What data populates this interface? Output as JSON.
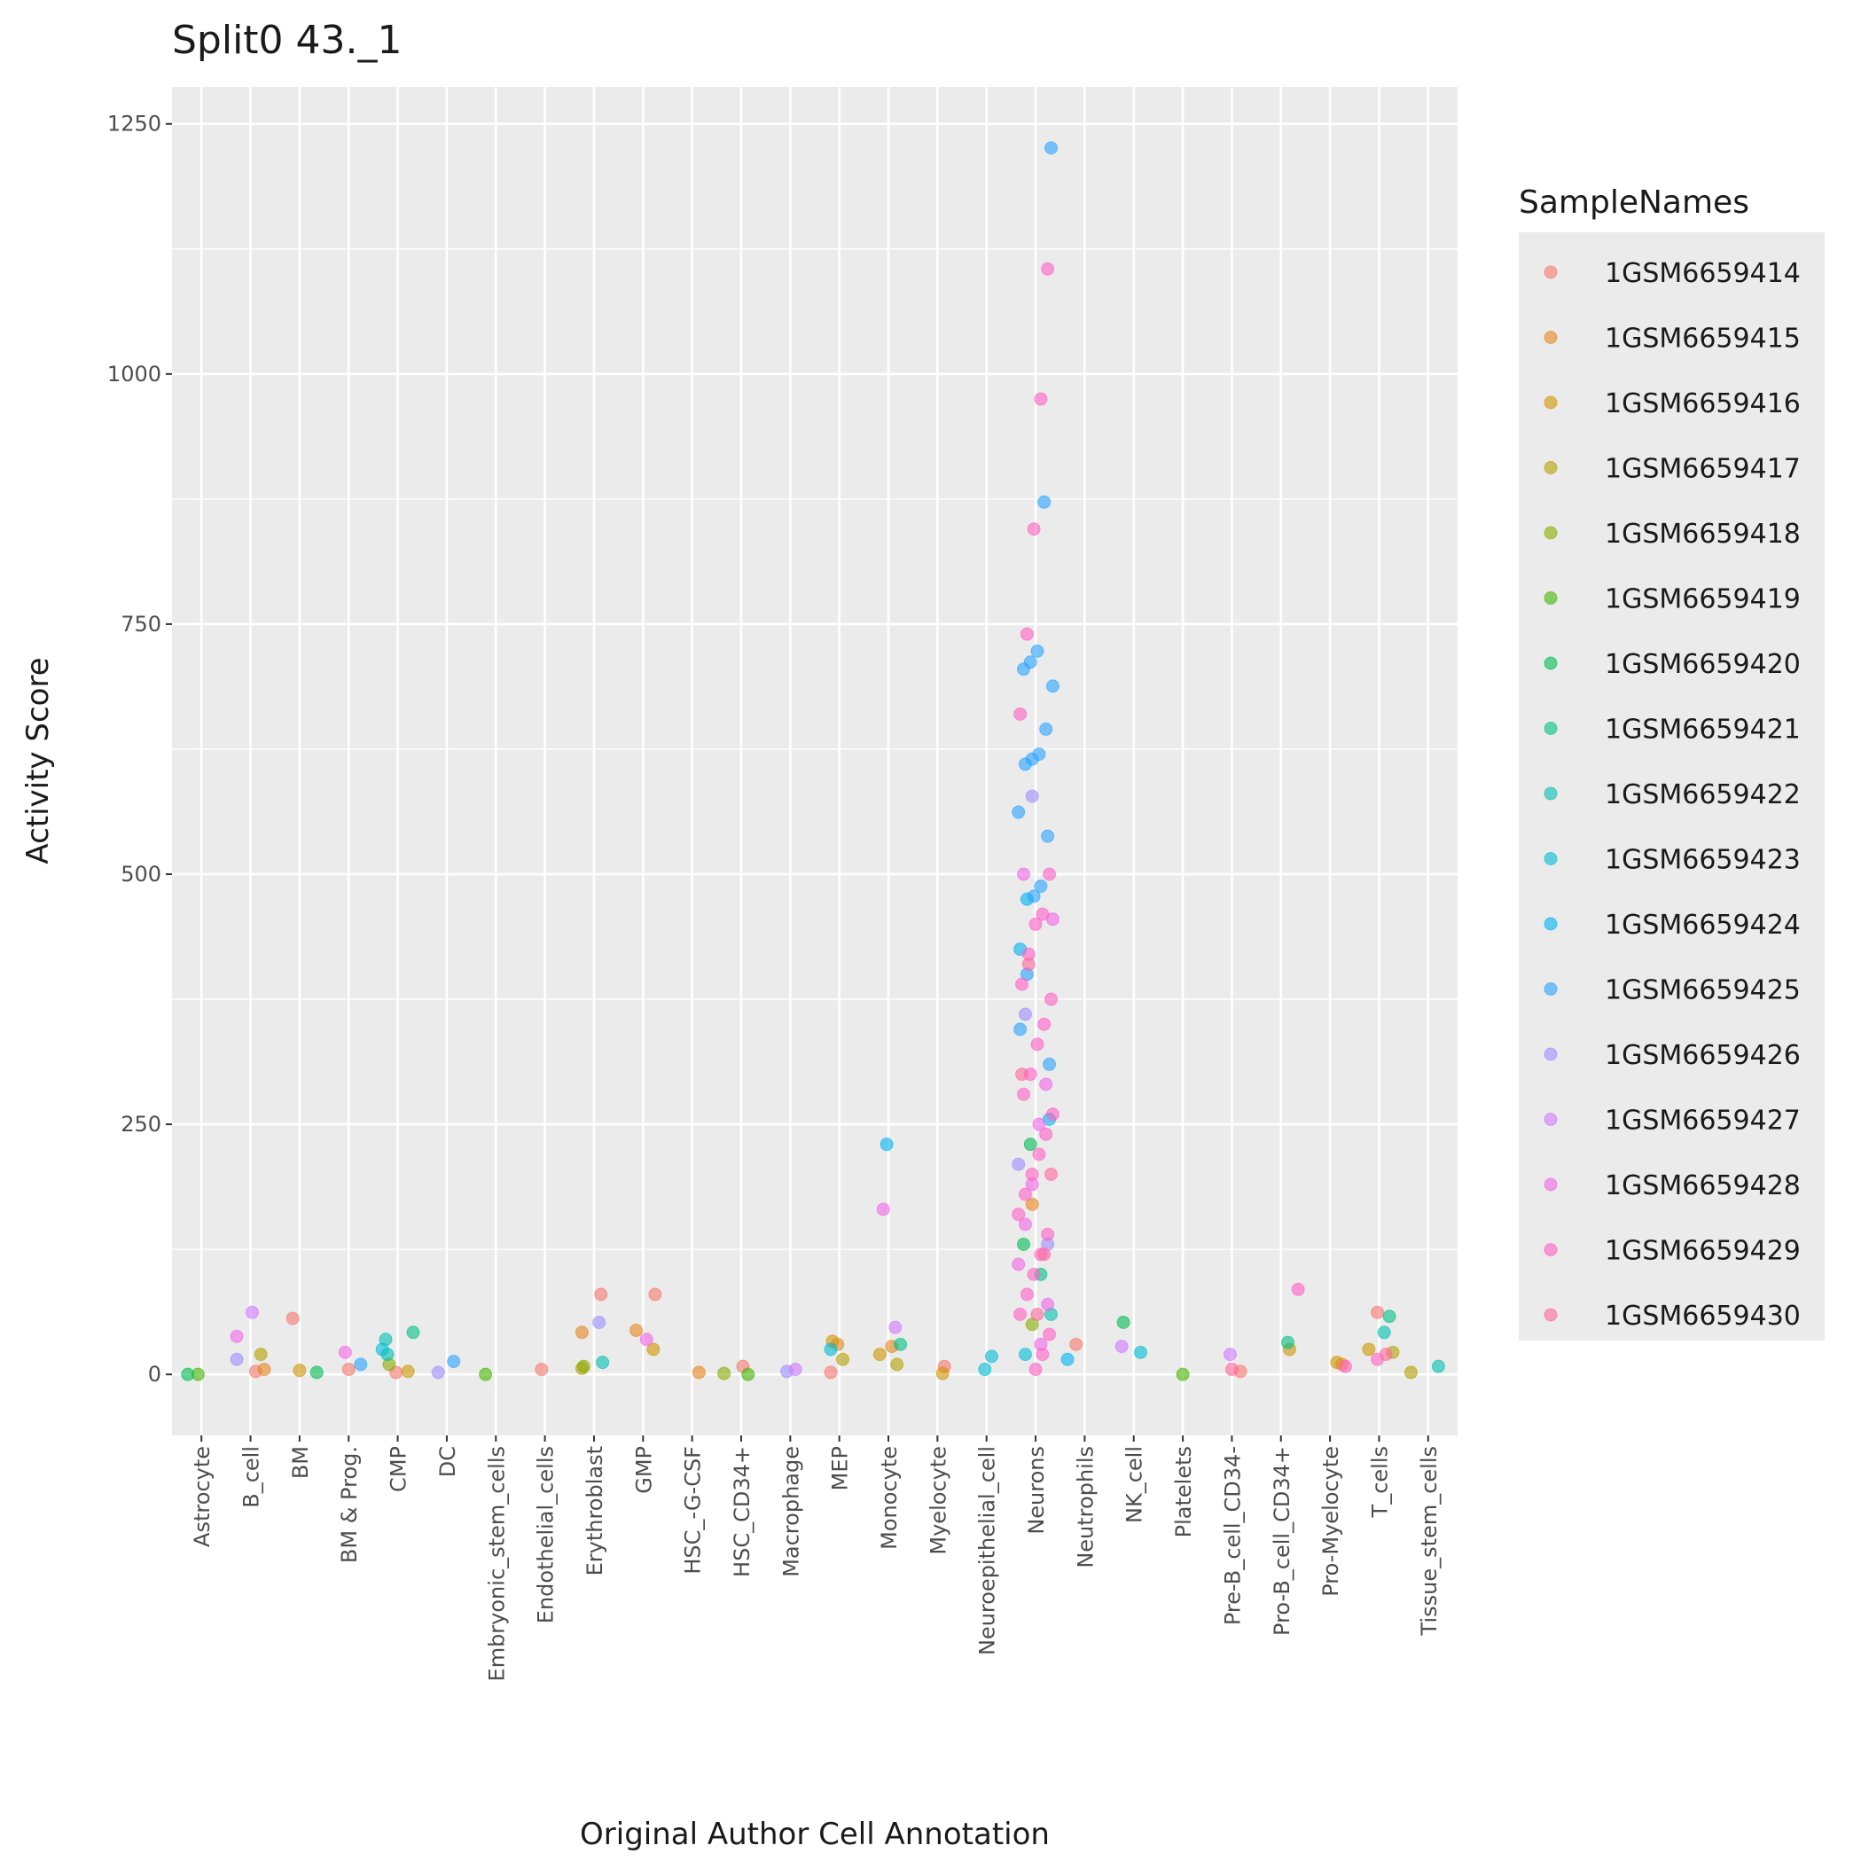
{
  "chart_data": {
    "type": "strip",
    "title": "Split0 43._1",
    "x_label": "Original Author Cell Annotation",
    "y_label": "Activity Score",
    "legend_title": "SampleNames",
    "legend_position": "right",
    "grid": true,
    "ylim": [
      -61,
      1287
    ],
    "yticks": [
      0,
      250,
      500,
      750,
      1000,
      1250
    ],
    "categories": [
      "Astrocyte",
      "B_cell",
      "BM",
      "BM & Prog.",
      "CMP",
      "DC",
      "Embryonic_stem_cells",
      "Endothelial_cells",
      "Erythroblast",
      "GMP",
      "HSC_-G-CSF",
      "HSC_CD34+",
      "Macrophage",
      "MEP",
      "Monocyte",
      "Myelocyte",
      "Neuroepithelial_cell",
      "Neurons",
      "Neutrophils",
      "NK_cell",
      "Platelets",
      "Pre-B_cell_CD34-",
      "Pro-B_cell_CD34+",
      "Pro-Myelocyte",
      "T_cells",
      "Tissue_stem_cells"
    ],
    "series": [
      {
        "name": "1GSM6659414",
        "color": "#F8766D",
        "x": [
          "Erythroblast",
          "GMP",
          "BM",
          "T_cells",
          "Neutrophils",
          "Endothelial_cells",
          "HSC_CD34+",
          "Myelocyte",
          "BM & Prog.",
          "B_cell",
          "CMP",
          "MEP",
          "Pre-B_cell_CD34-"
        ],
        "values": [
          80,
          80,
          56,
          62,
          30,
          5,
          8,
          8,
          5,
          3,
          2,
          2,
          3
        ]
      },
      {
        "name": "1GSM6659415",
        "color": "#E7851E",
        "x": [
          "Erythroblast",
          "GMP",
          "MEP",
          "Monocyte",
          "Neurons",
          "B_cell",
          "HSC_-G-CSF",
          "Pro-Myelocyte"
        ],
        "values": [
          42,
          44,
          30,
          28,
          170,
          5,
          2,
          10
        ]
      },
      {
        "name": "1GSM6659416",
        "color": "#D09400",
        "x": [
          "MEP",
          "GMP",
          "Monocyte",
          "Pro-B_cell_CD34+",
          "T_cells",
          "Pro-Myelocyte",
          "BM",
          "Myelocyte",
          "CMP"
        ],
        "values": [
          33,
          25,
          20,
          25,
          25,
          12,
          4,
          1,
          3
        ]
      },
      {
        "name": "1GSM6659417",
        "color": "#B2A100",
        "x": [
          "B_cell",
          "MEP",
          "Monocyte",
          "T_cells",
          "Tissue_stem_cells",
          "Erythroblast"
        ],
        "values": [
          20,
          15,
          10,
          22,
          2,
          6
        ]
      },
      {
        "name": "1GSM6659418",
        "color": "#89AC00",
        "x": [
          "CMP",
          "Neurons",
          "Erythroblast",
          "HSC_CD34+"
        ],
        "values": [
          10,
          50,
          8,
          1
        ]
      },
      {
        "name": "1GSM6659419",
        "color": "#45B500",
        "x": [
          "Astrocyte",
          "Embryonic_stem_cells",
          "HSC_CD34+",
          "Platelets"
        ],
        "values": [
          0,
          0,
          0,
          0
        ]
      },
      {
        "name": "1GSM6659420",
        "color": "#00BC51",
        "x": [
          "NK_cell",
          "Neurons",
          "Neurons",
          "BM",
          "Astrocyte"
        ],
        "values": [
          52,
          230,
          130,
          2,
          0
        ]
      },
      {
        "name": "1GSM6659421",
        "color": "#00C087",
        "x": [
          "Pro-B_cell_CD34+",
          "Monocyte",
          "Neurons",
          "T_cells",
          "CMP"
        ],
        "values": [
          32,
          30,
          100,
          58,
          42
        ]
      },
      {
        "name": "1GSM6659422",
        "color": "#00C0B2",
        "x": [
          "CMP",
          "T_cells",
          "Tissue_stem_cells",
          "Neurons",
          "Erythroblast",
          "CMP"
        ],
        "values": [
          35,
          42,
          8,
          60,
          12,
          20
        ]
      },
      {
        "name": "1GSM6659423",
        "color": "#00BCD6",
        "x": [
          "Neuroepithelial_cell",
          "Neuroepithelial_cell",
          "MEP",
          "CMP",
          "Neurons",
          "NK_cell"
        ],
        "values": [
          18,
          5,
          25,
          25,
          20,
          22
        ]
      },
      {
        "name": "1GSM6659424",
        "color": "#00B3F2",
        "x": [
          "Monocyte",
          "Neurons",
          "Neurons",
          "Neurons",
          "Neutrophils"
        ],
        "values": [
          230,
          475,
          425,
          255,
          15
        ]
      },
      {
        "name": "1GSM6659425",
        "color": "#29A3FF",
        "x": [
          "Neurons",
          "Neurons",
          "Neurons",
          "Neurons",
          "Neurons",
          "Neurons",
          "Neurons",
          "Neurons",
          "Neurons",
          "Neurons",
          "Neurons",
          "Neurons",
          "Neurons",
          "Neurons",
          "Neurons",
          "Neurons",
          "Neurons",
          "DC",
          "BM & Prog."
        ],
        "values": [
          1226,
          872,
          723,
          712,
          705,
          688,
          645,
          620,
          615,
          610,
          562,
          538,
          488,
          478,
          400,
          345,
          310,
          13,
          10
        ]
      },
      {
        "name": "1GSM6659426",
        "color": "#9C8DFF",
        "x": [
          "Neurons",
          "Neurons",
          "Neurons",
          "Neurons",
          "Erythroblast",
          "B_cell",
          "DC",
          "Macrophage"
        ],
        "values": [
          578,
          360,
          210,
          130,
          52,
          15,
          2,
          3
        ]
      },
      {
        "name": "1GSM6659427",
        "color": "#D277FF",
        "x": [
          "B_cell",
          "Monocyte",
          "NK_cell",
          "Macrophage",
          "Pre-B_cell_CD34-"
        ],
        "values": [
          62,
          47,
          28,
          5,
          20
        ]
      },
      {
        "name": "1GSM6659428",
        "color": "#F166E8",
        "x": [
          "Monocyte",
          "Neurons",
          "Neurons",
          "Neurons",
          "Neurons",
          "Neurons",
          "Neurons",
          "Neurons",
          "Neurons",
          "Neurons",
          "B_cell",
          "GMP",
          "BM & Prog."
        ],
        "values": [
          165,
          500,
          455,
          290,
          250,
          190,
          150,
          110,
          70,
          30,
          38,
          35,
          22
        ]
      },
      {
        "name": "1GSM6659429",
        "color": "#FF61C7",
        "x": [
          "Neurons",
          "Neurons",
          "Neurons",
          "Neurons",
          "Neurons",
          "Neurons",
          "Neurons",
          "Neurons",
          "Neurons",
          "Neurons",
          "Neurons",
          "Neurons",
          "Neurons",
          "Neurons",
          "Neurons",
          "Neurons",
          "Neurons",
          "Neurons",
          "Neurons",
          "Neurons",
          "Neurons",
          "Neurons",
          "Neurons",
          "Neurons",
          "Neurons",
          "Neurons",
          "Neurons",
          "Neurons",
          "Neurons",
          "Pro-B_cell_CD34+",
          "T_cells",
          "Pro-Myelocyte"
        ],
        "values": [
          1105,
          975,
          845,
          740,
          660,
          500,
          460,
          450,
          420,
          390,
          375,
          350,
          330,
          300,
          280,
          260,
          240,
          220,
          200,
          180,
          160,
          140,
          120,
          100,
          80,
          60,
          40,
          20,
          5,
          85,
          15,
          8
        ]
      },
      {
        "name": "1GSM6659430",
        "color": "#FF689E",
        "x": [
          "Neurons",
          "Neurons",
          "Neurons",
          "Neurons",
          "Neurons",
          "T_cells",
          "Pre-B_cell_CD34-"
        ],
        "values": [
          410,
          300,
          200,
          120,
          60,
          20,
          5
        ]
      }
    ]
  }
}
